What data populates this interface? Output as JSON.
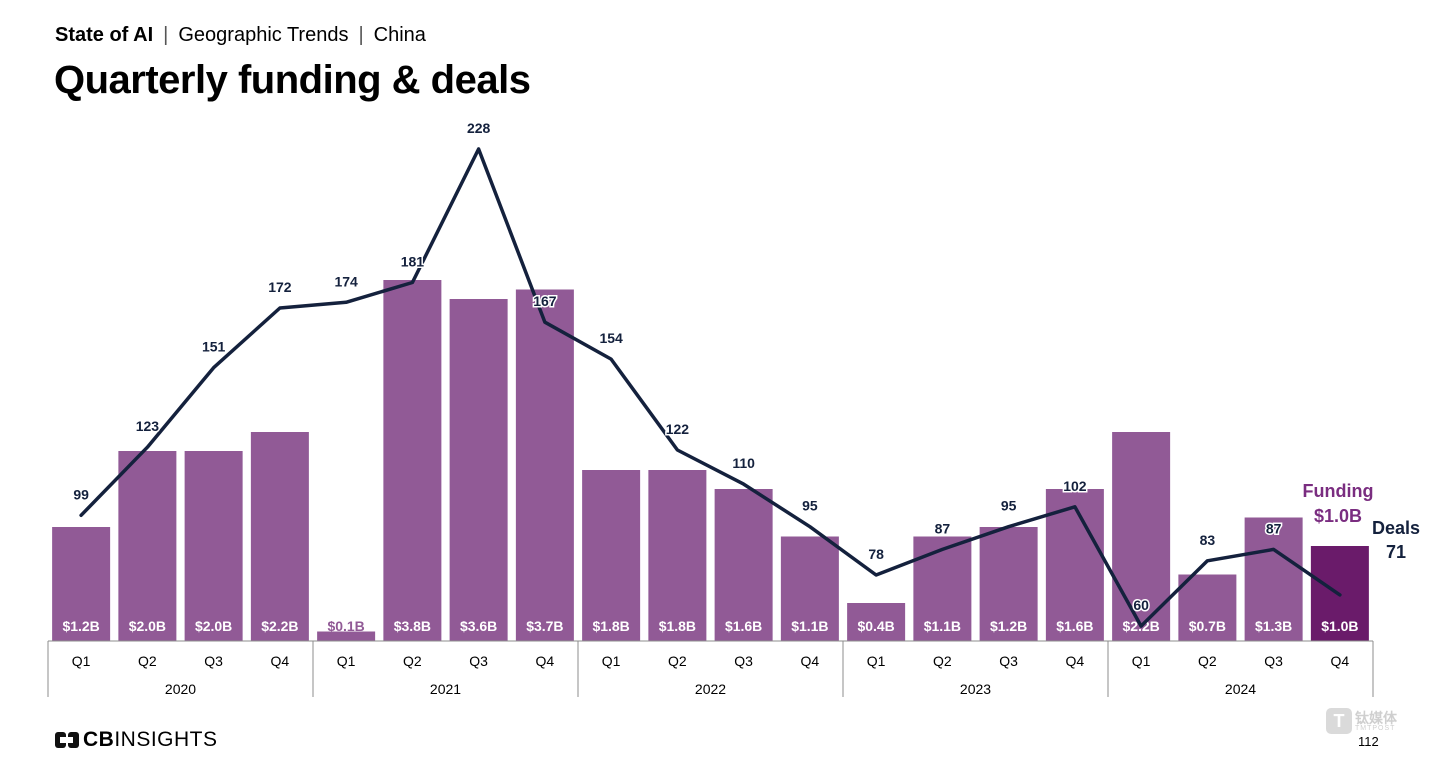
{
  "header": {
    "brand": "State of AI",
    "crumb1": "Geographic Trends",
    "crumb2": "China"
  },
  "title": "Quarterly funding & deals",
  "chart_data": {
    "type": "bar+line",
    "title": "Quarterly funding & deals",
    "years": [
      "2020",
      "2021",
      "2022",
      "2023",
      "2024"
    ],
    "categories": [
      "Q1",
      "Q2",
      "Q3",
      "Q4",
      "Q1",
      "Q2",
      "Q3",
      "Q4",
      "Q1",
      "Q2",
      "Q3",
      "Q4",
      "Q1",
      "Q2",
      "Q3",
      "Q4",
      "Q1",
      "Q2",
      "Q3",
      "Q4"
    ],
    "series": [
      {
        "name": "Funding",
        "kind": "bar",
        "unit": "$B",
        "values": [
          1.2,
          2.0,
          2.0,
          2.2,
          0.1,
          3.8,
          3.6,
          3.7,
          1.8,
          1.8,
          1.6,
          1.1,
          0.4,
          1.1,
          1.2,
          1.6,
          2.2,
          0.7,
          1.3,
          1.0
        ],
        "labels": [
          "$1.2B",
          "$2.0B",
          "$2.0B",
          "$2.2B",
          "$0.1B",
          "$3.8B",
          "$3.6B",
          "$3.7B",
          "$1.8B",
          "$1.8B",
          "$1.6B",
          "$1.1B",
          "$0.4B",
          "$1.1B",
          "$1.2B",
          "$1.6B",
          "$2.2B",
          "$0.7B",
          "$1.3B",
          "$1.0B"
        ],
        "color": "#915a96",
        "highlight_color": "#6a1b6a"
      },
      {
        "name": "Deals",
        "kind": "line",
        "values": [
          99,
          123,
          151,
          172,
          174,
          181,
          228,
          167,
          154,
          122,
          110,
          95,
          78,
          87,
          95,
          102,
          60,
          83,
          87,
          71
        ],
        "color": "#14213d"
      }
    ],
    "legend": {
      "funding_label": "Funding",
      "funding_value": "$1.0B",
      "deals_label": "Deals",
      "deals_value": "71"
    }
  },
  "footer": {
    "logo_prefix": "CB",
    "logo_suffix": "INSIGHTS",
    "page_number": "112",
    "watermark_cn": "钛媒体",
    "watermark_en": "TMTPOST"
  }
}
